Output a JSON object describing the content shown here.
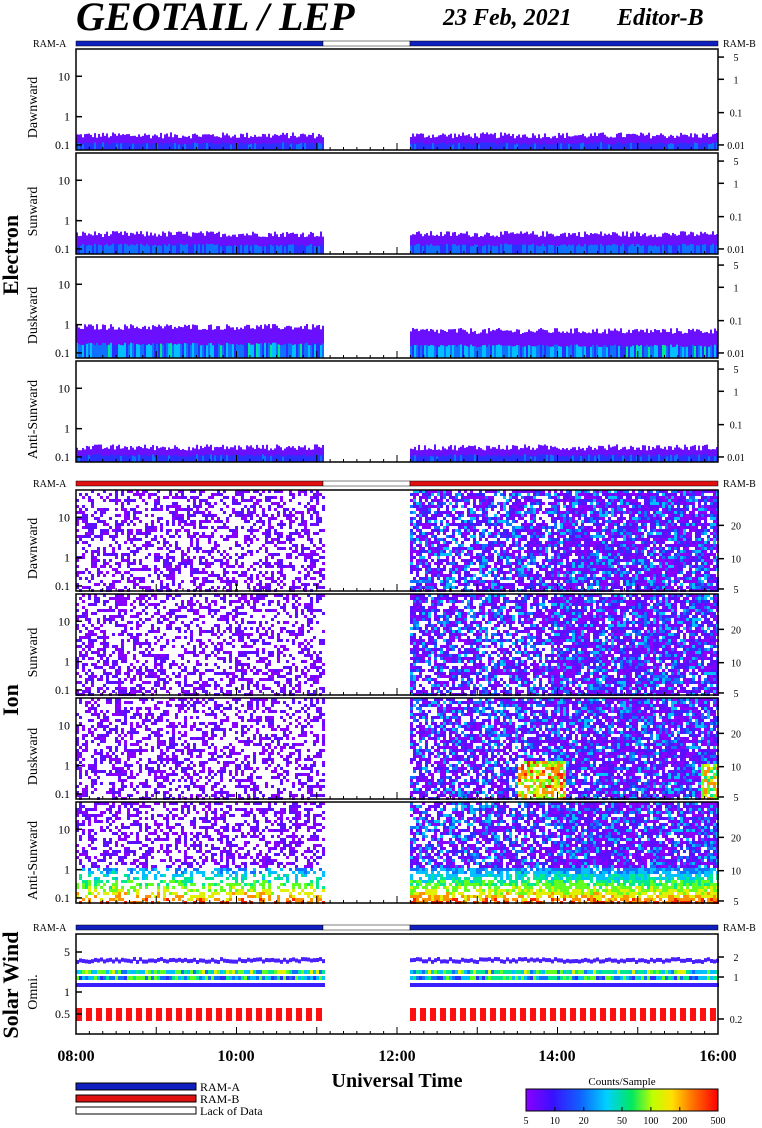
{
  "header": {
    "title": "GEOTAIL / LEP",
    "date": "23 Feb, 2021",
    "editor": "Editor-B"
  },
  "ram": {
    "a": "RAM-A",
    "b": "RAM-B"
  },
  "sections": [
    {
      "name": "Electron",
      "panels": [
        "Dawnward",
        "Sunward",
        "Duskward",
        "Anti-Sunward"
      ],
      "left_ticks": [
        "10",
        "1",
        "0.1"
      ],
      "right_ticks": [
        "5",
        "1",
        "0.1",
        "0.01"
      ]
    },
    {
      "name": "Ion",
      "panels": [
        "Dawnward",
        "Sunward",
        "Duskward",
        "Anti-Sunward"
      ],
      "left_ticks": [
        "10",
        "1",
        "0.1"
      ],
      "right_ticks": [
        "20",
        "10",
        "5"
      ]
    },
    {
      "name": "Solar Wind",
      "panels": [
        "Omni."
      ],
      "left_ticks": [
        "5",
        "1",
        "0.5"
      ],
      "right_ticks": [
        "2",
        "1",
        "0.2"
      ]
    }
  ],
  "time_axis": {
    "label": "Universal Time",
    "ticks": [
      "08:00",
      "10:00",
      "12:00",
      "14:00",
      "16:00"
    ]
  },
  "legend": {
    "ram_a": "RAM-A",
    "ram_b": "RAM-B",
    "lack": "Lack of Data"
  },
  "colorbar": {
    "title": "Counts/Sample",
    "ticks": [
      "5",
      "10",
      "20",
      "50",
      "100",
      "200",
      "500"
    ]
  },
  "colors": {
    "ram_a": "#1020c0",
    "ram_b": "#e01010",
    "lack": "#ffffff"
  },
  "chart_data": {
    "type": "heatmap",
    "x_range_hours_ut": [
      8,
      16
    ],
    "data_gap_ut": [
      "11:05",
      "12:10"
    ],
    "ram_status": [
      {
        "section": "Electron",
        "mode": "RAM-A"
      },
      {
        "section": "Ion",
        "mode": "RAM-B"
      },
      {
        "section": "Solar Wind",
        "mode": "RAM-A"
      }
    ],
    "colorbar_range": [
      5,
      500
    ],
    "colorbar_scale": "log"
  }
}
